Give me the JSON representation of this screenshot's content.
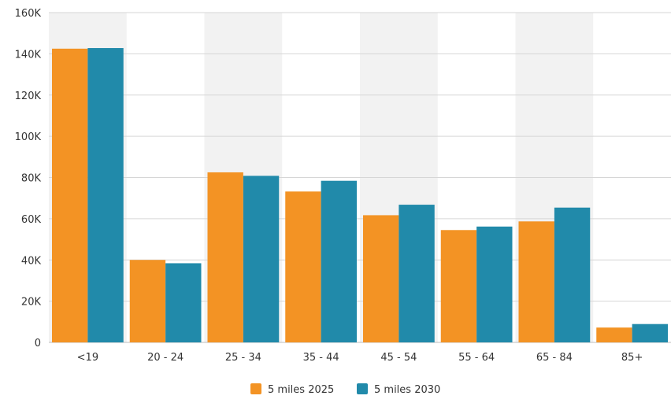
{
  "chart_data": {
    "type": "bar",
    "categories": [
      "<19",
      "20 - 24",
      "25 - 34",
      "35 - 44",
      "45 - 54",
      "55 - 64",
      "65 - 84",
      "85+"
    ],
    "series": [
      {
        "name": "5 miles 2025",
        "color": "#F39324",
        "values": [
          142500,
          40000,
          82500,
          73200,
          61700,
          54500,
          58700,
          7200
        ]
      },
      {
        "name": "5 miles 2030",
        "color": "#218AAA",
        "values": [
          142800,
          38400,
          80800,
          78400,
          66800,
          56200,
          65400,
          8900
        ]
      }
    ],
    "ylim": [
      0,
      160000
    ],
    "yticks": [
      0,
      20000,
      40000,
      60000,
      80000,
      100000,
      120000,
      140000,
      160000
    ],
    "ytick_labels": [
      "0",
      "20K",
      "40K",
      "60K",
      "80K",
      "100K",
      "120K",
      "140K",
      "160K"
    ],
    "grid": true,
    "alternating_band_color": "#F2F2F2",
    "legend_position": "bottom-center"
  }
}
